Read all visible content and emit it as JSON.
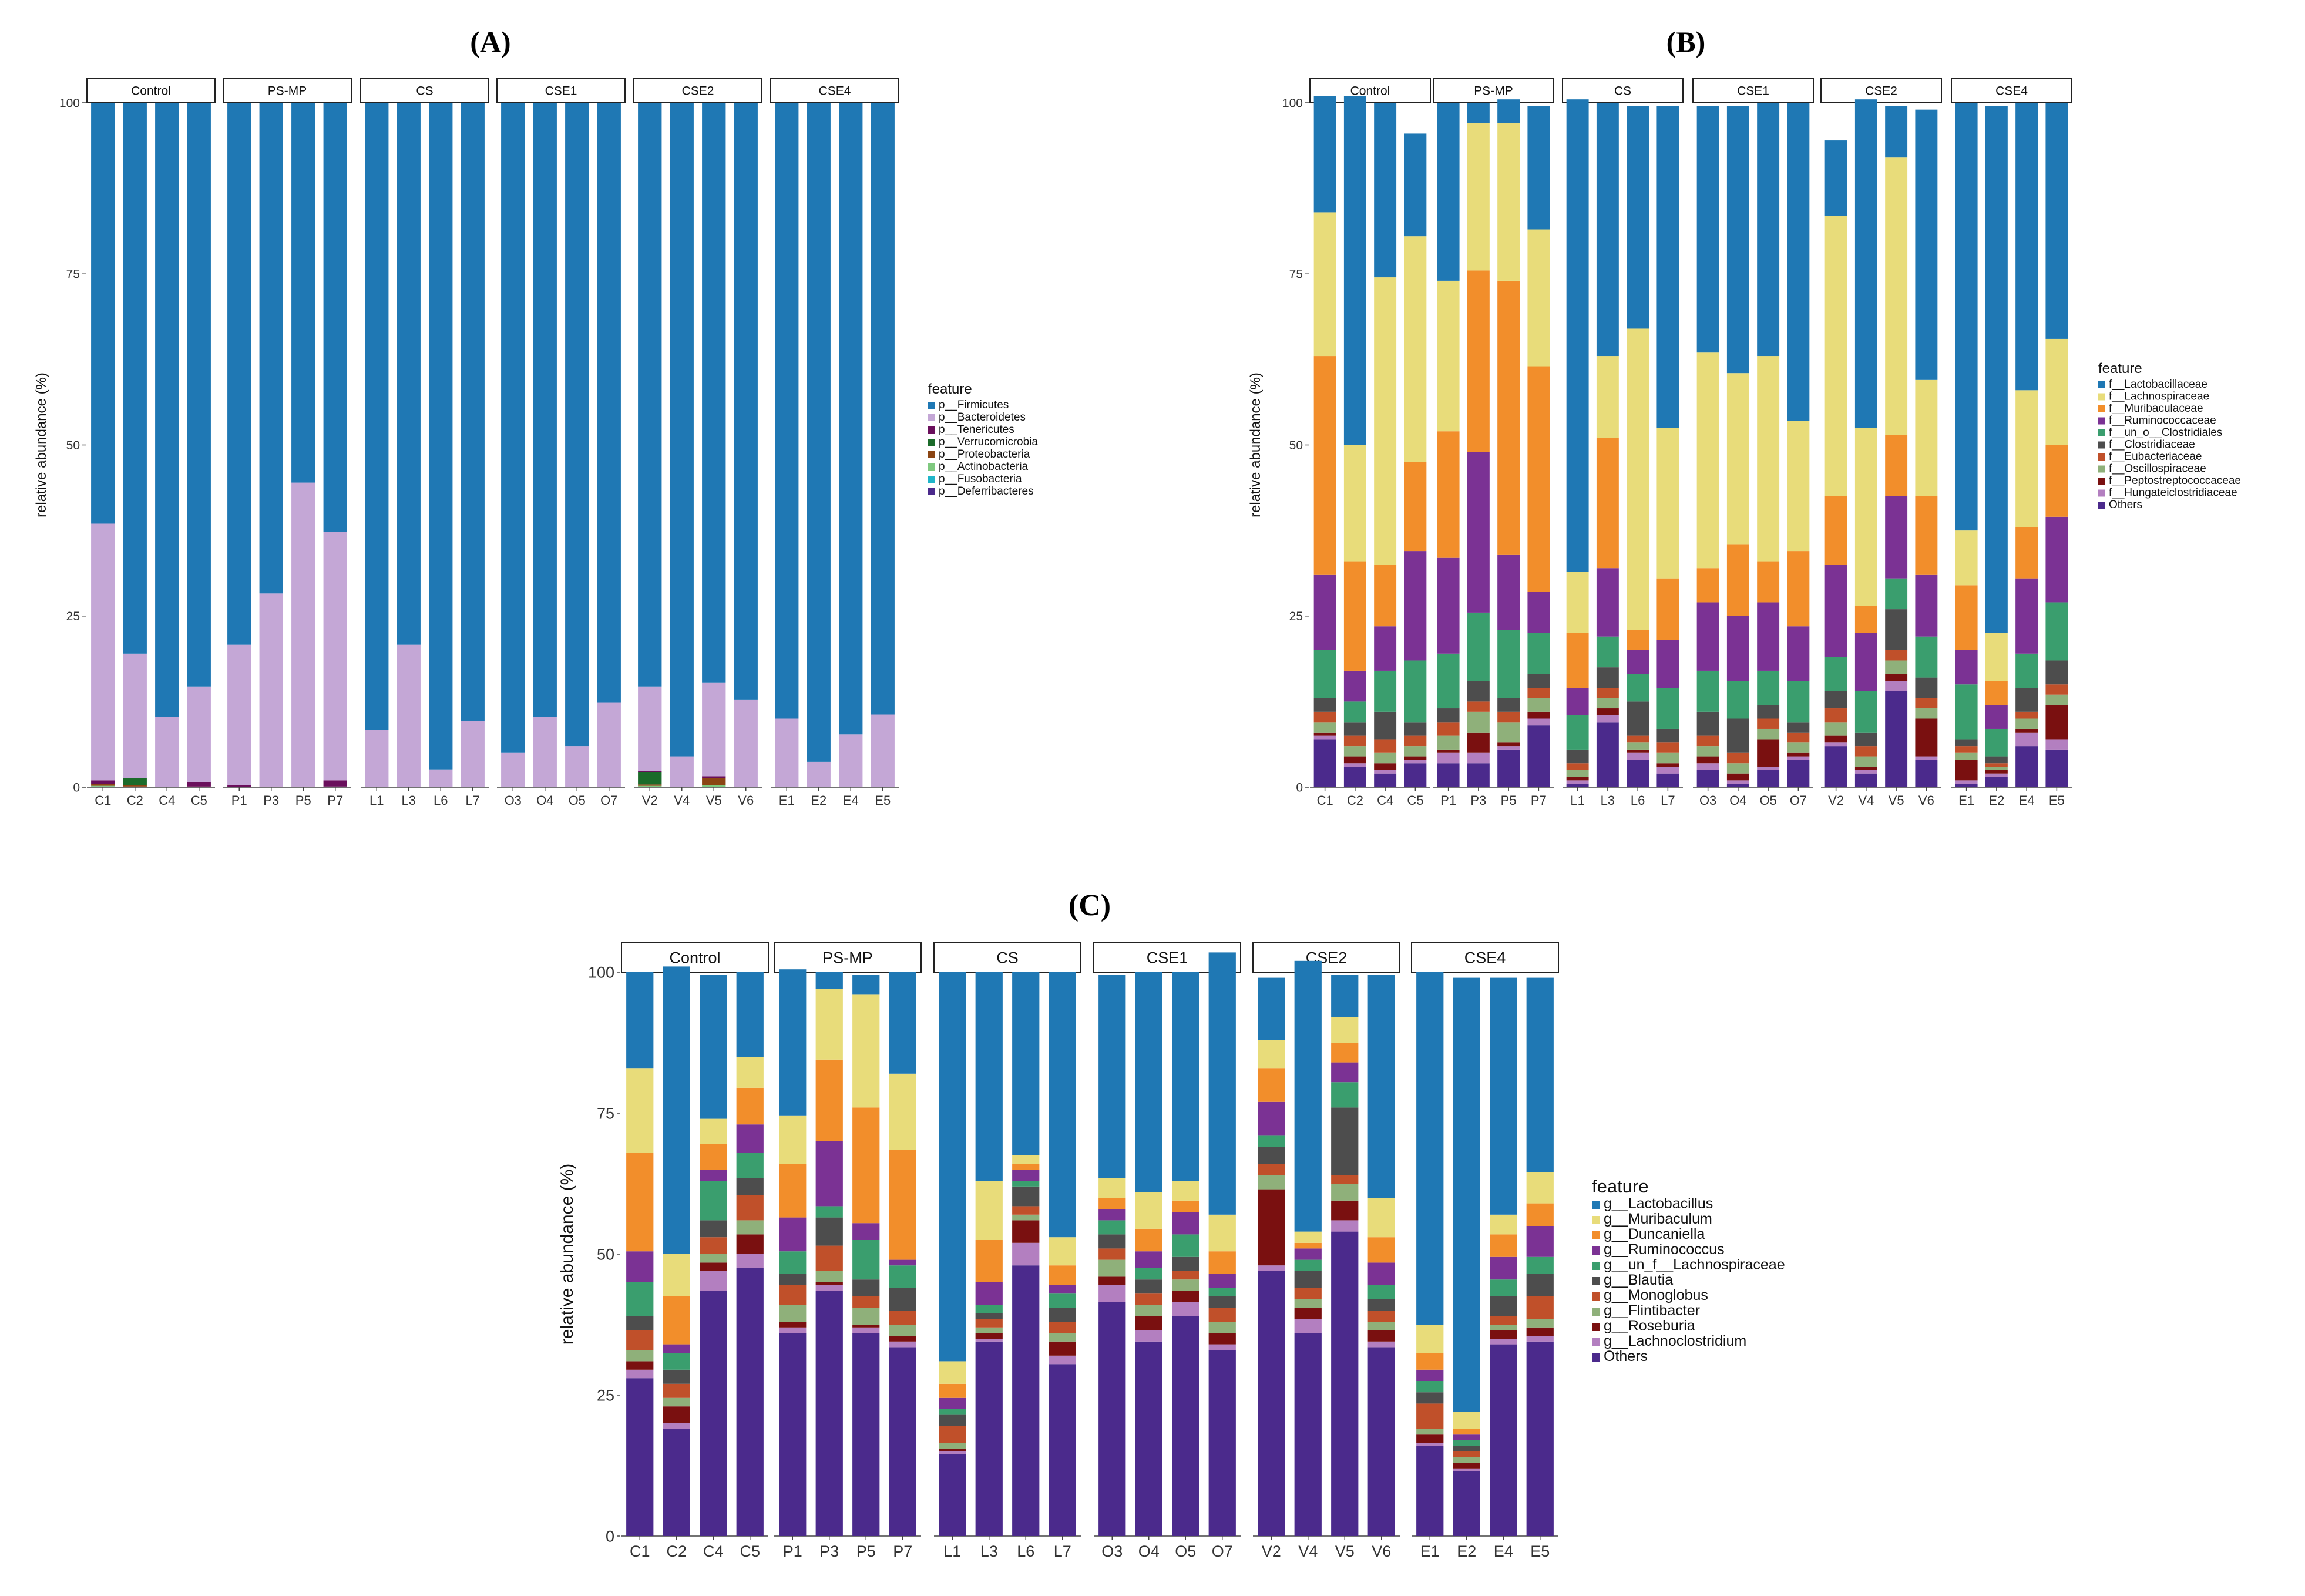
{
  "chart_data": [
    {
      "panel": "(A)",
      "type": "bar",
      "subtype": "stacked-facet",
      "ylabel": "relative abundance (%)",
      "ylim": [
        0,
        100
      ],
      "yticks": [
        0,
        25,
        50,
        75,
        100
      ],
      "legend_title": "feature",
      "legend_position": "right",
      "groups": [
        {
          "label": "Control",
          "samples": [
            "C1",
            "C2",
            "C4",
            "C5"
          ]
        },
        {
          "label": "PS-MP",
          "samples": [
            "P1",
            "P3",
            "P5",
            "P7"
          ]
        },
        {
          "label": "CS",
          "samples": [
            "L1",
            "L3",
            "L6",
            "L7"
          ]
        },
        {
          "label": "CSE1",
          "samples": [
            "O3",
            "O4",
            "O5",
            "O7"
          ]
        },
        {
          "label": "CSE2",
          "samples": [
            "V2",
            "V4",
            "V5",
            "V6"
          ]
        },
        {
          "label": "CSE4",
          "samples": [
            "E1",
            "E2",
            "E4",
            "E5"
          ]
        }
      ],
      "series": [
        {
          "name": "p__Firmicutes",
          "color": "#1f78b4",
          "values": [
            61.5,
            80.5,
            89.7,
            85.3,
            79.2,
            71.7,
            55.5,
            62.7,
            91.6,
            79.2,
            97.4,
            90.3,
            95,
            89.7,
            94,
            87.6,
            85.3,
            95.5,
            84.7,
            87.2,
            90,
            96.3,
            92.3,
            89.4
          ]
        },
        {
          "name": "p__Bacteroidetes",
          "color": "#c4a7d6",
          "values": [
            37.5,
            18.2,
            10.3,
            14,
            20.5,
            28.2,
            44.4,
            36.3,
            8.4,
            20.8,
            2.6,
            9.7,
            5,
            10.3,
            6,
            12.4,
            12.3,
            4.5,
            13.7,
            12.8,
            10,
            3.7,
            7.7,
            10.6
          ]
        },
        {
          "name": "p__Tenericutes",
          "color": "#6a0f5c",
          "values": [
            0.5,
            0,
            0,
            0.6,
            0.3,
            0.1,
            0.1,
            0.9,
            0,
            0,
            0,
            0,
            0,
            0,
            0,
            0,
            0.2,
            0,
            0.3,
            0,
            0,
            0,
            0,
            0
          ]
        },
        {
          "name": "p__Verrucomicrobia",
          "color": "#1b6b2a",
          "values": [
            0,
            1.0,
            0,
            0,
            0,
            0,
            0,
            0,
            0,
            0,
            0,
            0,
            0,
            0,
            0,
            0,
            1.8,
            0,
            0,
            0,
            0,
            0,
            0,
            0
          ]
        },
        {
          "name": "p__Proteobacteria",
          "color": "#8b4513",
          "values": [
            0.3,
            0.2,
            0,
            0.1,
            0,
            0,
            0,
            0,
            0,
            0,
            0,
            0,
            0,
            0,
            0,
            0,
            0.2,
            0,
            1.0,
            0,
            0,
            0,
            0,
            0
          ]
        },
        {
          "name": "p__Actinobacteria",
          "color": "#7fc97f",
          "values": [
            0.1,
            0,
            0,
            0,
            0,
            0,
            0,
            0.1,
            0,
            0,
            0,
            0,
            0,
            0,
            0,
            0,
            0.2,
            0,
            0.3,
            0,
            0,
            0,
            0,
            0
          ]
        },
        {
          "name": "p__Fusobacteria",
          "color": "#1fb5c9",
          "values": [
            0,
            0,
            0,
            0,
            0,
            0,
            0,
            0,
            0,
            0,
            0,
            0,
            0,
            0,
            0,
            0,
            0,
            0,
            0,
            0,
            0,
            0,
            0,
            0
          ]
        },
        {
          "name": "p__Deferribacteres",
          "color": "#4b2a8c",
          "values": [
            0.1,
            0.1,
            0,
            0,
            0,
            0,
            0,
            0,
            0,
            0,
            0,
            0,
            0,
            0,
            0,
            0,
            0,
            0,
            0,
            0,
            0,
            0,
            0,
            0
          ]
        }
      ]
    },
    {
      "panel": "(B)",
      "type": "bar",
      "subtype": "stacked-facet",
      "ylabel": "relative abundance (%)",
      "ylim": [
        0,
        100
      ],
      "yticks": [
        0,
        25,
        50,
        75,
        100
      ],
      "legend_title": "feature",
      "legend_position": "right",
      "groups": [
        {
          "label": "Control",
          "samples": [
            "C1",
            "C2",
            "C4",
            "C5"
          ]
        },
        {
          "label": "PS-MP",
          "samples": [
            "P1",
            "P3",
            "P5",
            "P7"
          ]
        },
        {
          "label": "CS",
          "samples": [
            "L1",
            "L3",
            "L6",
            "L7"
          ]
        },
        {
          "label": "CSE1",
          "samples": [
            "O3",
            "O4",
            "O5",
            "O7"
          ]
        },
        {
          "label": "CSE2",
          "samples": [
            "V2",
            "V4",
            "V5",
            "V6"
          ]
        },
        {
          "label": "CSE4",
          "samples": [
            "E1",
            "E2",
            "E4",
            "E5"
          ]
        }
      ],
      "series": [
        {
          "name": "f__Lactobacillaceae",
          "color": "#1f78b4",
          "values": [
            17,
            51,
            25.5,
            15,
            26,
            3,
            3.5,
            18,
            69,
            37,
            32.5,
            47,
            36,
            39,
            37,
            46.5,
            11,
            48,
            7.5,
            39.5,
            62.5,
            77,
            42,
            34.5
          ]
        },
        {
          "name": "f__Lachnospiraceae",
          "color": "#e8dc7a",
          "values": [
            21,
            17,
            42,
            33,
            22,
            21.5,
            23,
            20,
            9,
            12,
            44,
            22,
            31.5,
            25,
            30,
            19,
            41,
            26,
            40.5,
            17,
            8,
            7,
            20,
            15.5
          ]
        },
        {
          "name": "f__Muribaculaceae",
          "color": "#f28e2b",
          "values": [
            32,
            16,
            9,
            13,
            18.5,
            26.5,
            40,
            33,
            8,
            19,
            3,
            9,
            5,
            10.5,
            6,
            11,
            10,
            4,
            9,
            11.5,
            9.5,
            3.5,
            7.5,
            10.5
          ]
        },
        {
          "name": "f__Ruminococcaceae",
          "color": "#7b3294",
          "values": [
            11,
            4.5,
            6.5,
            16,
            14,
            23.5,
            11,
            6,
            4,
            10,
            3.5,
            7,
            10,
            9.5,
            10,
            8,
            13.5,
            8.5,
            12,
            9,
            5,
            3.5,
            11,
            12.5
          ]
        },
        {
          "name": "f__un_o__Clostridiales",
          "color": "#3a9e6e",
          "values": [
            7,
            3,
            6,
            9,
            8,
            10,
            10,
            6,
            5,
            4.5,
            4,
            6,
            6,
            5.5,
            5,
            6,
            5,
            6,
            4.5,
            6,
            8,
            4,
            5,
            8.5
          ]
        },
        {
          "name": "f__Clostridiaceae",
          "color": "#4d4d4d",
          "values": [
            2,
            2,
            4,
            2,
            2,
            3,
            2,
            2,
            2,
            3,
            5,
            2,
            3.5,
            5,
            2,
            1.5,
            2.5,
            2,
            6,
            3,
            1,
            1,
            3.5,
            3.5
          ]
        },
        {
          "name": "f__Eubacteriaceae",
          "color": "#c0502a",
          "values": [
            1.5,
            1.5,
            2,
            1.5,
            2,
            1.5,
            1.5,
            1.5,
            1,
            1.5,
            1,
            1.5,
            1.5,
            1.5,
            1.5,
            1.5,
            2,
            1.5,
            1.5,
            1.5,
            1,
            0.5,
            1,
            1.5
          ]
        },
        {
          "name": "f__Oscillospiraceae",
          "color": "#8fb07a",
          "values": [
            1.5,
            1.5,
            1.5,
            1.5,
            2,
            3,
            3,
            2,
            1,
            1.5,
            1,
            1.5,
            1.5,
            1.5,
            1.5,
            1.5,
            2,
            1.5,
            2,
            1.5,
            1,
            0.5,
            1.5,
            1.5
          ]
        },
        {
          "name": "f__Peptostreptococcaceae",
          "color": "#7a1010",
          "values": [
            0.5,
            1,
            1,
            0.5,
            0.5,
            3,
            0.5,
            1,
            0.5,
            1,
            0.5,
            0.5,
            1,
            1,
            4,
            0.5,
            1,
            0.5,
            1,
            5.5,
            3,
            0.5,
            0.5,
            5
          ]
        },
        {
          "name": "f__Hungateiclostridiaceae",
          "color": "#b37fc0",
          "values": [
            0.5,
            0.5,
            0.5,
            0.5,
            1.5,
            1.5,
            0.5,
            1,
            0.5,
            1,
            1,
            1,
            1,
            0.5,
            0.5,
            0.5,
            0.5,
            0.5,
            1.5,
            0.5,
            0.5,
            0.5,
            2,
            1.5
          ]
        },
        {
          "name": "Others",
          "color": "#4b2a8c",
          "values": [
            7,
            3,
            2,
            3.5,
            3.5,
            3.5,
            5.5,
            9,
            0.5,
            9.5,
            4,
            2,
            2.5,
            0.5,
            2.5,
            4,
            6,
            2,
            14,
            4,
            0.5,
            1.5,
            6,
            5.5
          ]
        }
      ]
    },
    {
      "panel": "(C)",
      "type": "bar",
      "subtype": "stacked-facet",
      "ylabel": "relative abundance (%)",
      "ylim": [
        0,
        100
      ],
      "yticks": [
        0,
        25,
        50,
        75,
        100
      ],
      "legend_title": "feature",
      "legend_position": "right",
      "groups": [
        {
          "label": "Control",
          "samples": [
            "C1",
            "C2",
            "C4",
            "C5"
          ]
        },
        {
          "label": "PS-MP",
          "samples": [
            "P1",
            "P3",
            "P5",
            "P7"
          ]
        },
        {
          "label": "CS",
          "samples": [
            "L1",
            "L3",
            "L6",
            "L7"
          ]
        },
        {
          "label": "CSE1",
          "samples": [
            "O3",
            "O4",
            "O5",
            "O7"
          ]
        },
        {
          "label": "CSE2",
          "samples": [
            "V2",
            "V4",
            "V5",
            "V6"
          ]
        },
        {
          "label": "CSE4",
          "samples": [
            "E1",
            "E2",
            "E4",
            "E5"
          ]
        }
      ],
      "series": [
        {
          "name": "g__Lactobacillus",
          "color": "#1f78b4",
          "values": [
            17,
            51,
            25.5,
            15,
            26,
            3,
            3.5,
            18,
            69,
            37,
            32.5,
            47,
            36,
            39,
            37,
            46.5,
            11,
            48,
            7.5,
            39.5,
            62.5,
            77,
            42,
            34.5
          ]
        },
        {
          "name": "g__Muribaculum",
          "color": "#e8dc7a",
          "values": [
            15,
            7.5,
            4.5,
            5.5,
            8.5,
            12.5,
            20,
            13.5,
            4,
            10.5,
            1.5,
            5,
            3.5,
            6.5,
            3.5,
            6.5,
            5,
            2,
            4.5,
            7,
            5,
            3,
            3.5,
            5.5
          ]
        },
        {
          "name": "g__Duncaniella",
          "color": "#f28e2b",
          "values": [
            17.5,
            8.5,
            4.5,
            6.5,
            9.5,
            14.5,
            20.5,
            19.5,
            2.5,
            7.5,
            1,
            3.5,
            2,
            4,
            2,
            4,
            6,
            1,
            3.5,
            4.5,
            3,
            1,
            4,
            4
          ]
        },
        {
          "name": "g__Ruminococcus",
          "color": "#7b3294",
          "values": [
            5.5,
            1.5,
            2,
            5,
            6,
            11.5,
            3,
            1,
            2,
            4,
            2,
            1.5,
            2,
            3,
            4,
            2.5,
            6,
            2,
            3.5,
            4,
            2,
            1,
            4,
            5.5
          ]
        },
        {
          "name": "g__un_f__Lachnospiraceae",
          "color": "#3a9e6e",
          "values": [
            6,
            3,
            7,
            4.5,
            4,
            2,
            7,
            4,
            1,
            1.5,
            1,
            2.5,
            2.5,
            2,
            4,
            1.5,
            2,
            2,
            4.5,
            2.5,
            2,
            1,
            3,
            3
          ]
        },
        {
          "name": "g__Blautia",
          "color": "#4d4d4d",
          "values": [
            2.5,
            2.5,
            3,
            3,
            2,
            5,
            3,
            4,
            2,
            1,
            3.5,
            2.5,
            2.5,
            2.5,
            2.5,
            2,
            3,
            3,
            12,
            2,
            2,
            1,
            3.5,
            4
          ]
        },
        {
          "name": "g__Monoglobus",
          "color": "#c0502a",
          "values": [
            3.5,
            2.5,
            3,
            4.5,
            3.5,
            4.5,
            2,
            2.5,
            3,
            1.5,
            1.5,
            2,
            2,
            2,
            1.5,
            2.5,
            2,
            2,
            1.5,
            2,
            4.5,
            1,
            1.5,
            4
          ]
        },
        {
          "name": "g__Flintibacter",
          "color": "#8fb07a",
          "values": [
            2,
            1.5,
            1.5,
            2.5,
            3,
            2,
            3,
            2,
            1,
            1,
            1,
            1.5,
            3,
            2,
            2,
            2,
            2.5,
            1.5,
            3,
            1.5,
            1,
            1,
            1,
            1.5
          ]
        },
        {
          "name": "g__Roseburia",
          "color": "#7a1010",
          "values": [
            1.5,
            3,
            1.5,
            3.5,
            1,
            0.5,
            0.5,
            1,
            0.5,
            1,
            4,
            2.5,
            1.5,
            2.5,
            2,
            2,
            13.5,
            2,
            3.5,
            2,
            1.5,
            1,
            1.5,
            1.5
          ]
        },
        {
          "name": "g__Lachnoclostridium",
          "color": "#b37fc0",
          "values": [
            1.5,
            1,
            3.5,
            2.5,
            1,
            1,
            1,
            1,
            0.5,
            0.5,
            4,
            1.5,
            3,
            2,
            2.5,
            1,
            1,
            2.5,
            2,
            1,
            0.5,
            0.5,
            1,
            1
          ]
        },
        {
          "name": "Others",
          "color": "#4b2a8c",
          "values": [
            28,
            19,
            43.5,
            47.5,
            36,
            43.5,
            36,
            33.5,
            14.5,
            34.5,
            48,
            30.5,
            41.5,
            34.5,
            39,
            33,
            47,
            36,
            54,
            33.5,
            16,
            11.5,
            34,
            34.5
          ]
        }
      ]
    }
  ]
}
